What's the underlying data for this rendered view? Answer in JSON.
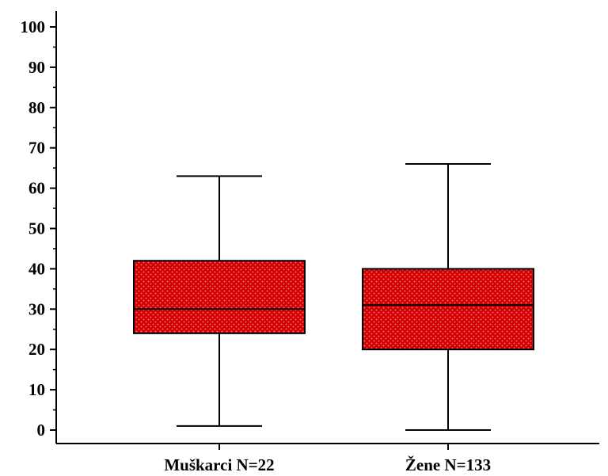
{
  "chart_data": {
    "type": "box",
    "title": "",
    "xlabel": "",
    "ylabel": "",
    "ylim": [
      0,
      100
    ],
    "y_ticks": [
      0,
      10,
      20,
      30,
      40,
      50,
      60,
      70,
      80,
      90,
      100
    ],
    "y_tick_labels": [
      "0",
      "10",
      "20",
      "30",
      "40",
      "50",
      "60",
      "70",
      "80",
      "90",
      "100"
    ],
    "y_minor_step": 5,
    "grid": false,
    "legend": "none",
    "box_fill": "#d40000",
    "box_dot": "#f08a8a",
    "categories": [
      "Muškarci N=22",
      "Žene N=133"
    ],
    "boxes": [
      {
        "label": "Muškarci N=22",
        "min": 1,
        "q1": 24,
        "median": 30,
        "q3": 42,
        "max": 63
      },
      {
        "label": "Žene N=133",
        "min": 0,
        "q1": 20,
        "median": 31,
        "q3": 40,
        "max": 66
      }
    ]
  }
}
